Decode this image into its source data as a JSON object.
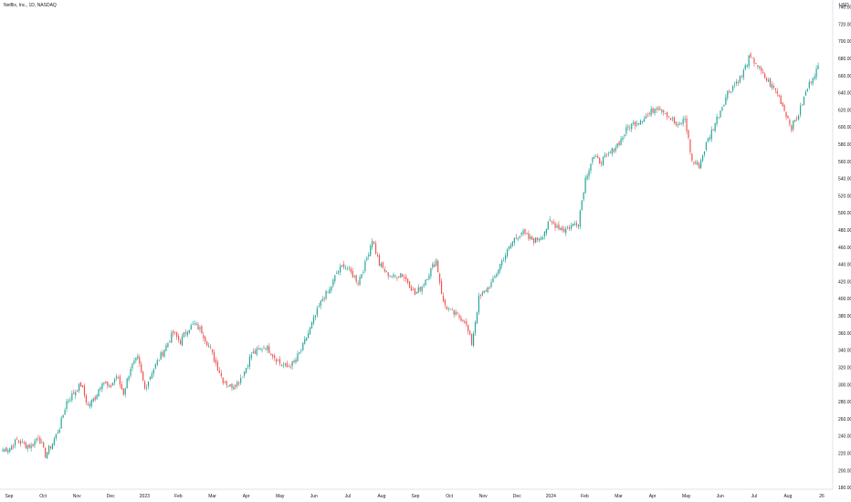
{
  "header": {
    "title": "Netflix, Inc., 1D, NASDAQ",
    "currency": "USD"
  },
  "colors": {
    "up": "#26a69a",
    "down": "#ef5350",
    "axis": "#e0e3eb",
    "text": "#131722",
    "background": "#ffffff"
  },
  "chart_data": {
    "type": "candlestick",
    "title": "Netflix, Inc., 1D, NASDAQ",
    "ylabel": "USD",
    "ylim": [
      178,
      748
    ],
    "y_ticks": [
      180,
      200,
      220,
      240,
      260,
      280,
      300,
      320,
      340,
      360,
      380,
      400,
      420,
      440,
      460,
      480,
      500,
      520,
      540,
      560,
      580,
      600,
      620,
      640,
      660,
      680,
      700,
      720,
      740
    ],
    "x_tick_labels": [
      "Sep",
      "Oct",
      "Nov",
      "Dec",
      "2023",
      "Feb",
      "Mar",
      "Apr",
      "May",
      "Jun",
      "Jul",
      "Aug",
      "Sep",
      "Oct",
      "Nov",
      "Dec",
      "2024",
      "Feb",
      "Mar",
      "Apr",
      "May",
      "Jun",
      "Jul",
      "Aug",
      "26"
    ],
    "months": [
      {
        "label": "Sep",
        "path": [
          224,
          226,
          235,
          230,
          228,
          240
        ]
      },
      {
        "label": "Oct",
        "path": [
          240,
          218,
          232,
          250,
          280,
          290
        ]
      },
      {
        "label": "Nov",
        "path": [
          290,
          300,
          275,
          285,
          305,
          295
        ]
      },
      {
        "label": "Dec",
        "path": [
          295,
          310,
          290,
          320,
          330,
          295
        ]
      },
      {
        "label": "2023",
        "path": [
          295,
          315,
          330,
          345,
          360,
          350
        ]
      },
      {
        "label": "Feb",
        "path": [
          350,
          365,
          370,
          362,
          345,
          325
        ]
      },
      {
        "label": "Mar",
        "path": [
          325,
          305,
          298,
          302,
          315,
          335
        ]
      },
      {
        "label": "Apr",
        "path": [
          335,
          340,
          345,
          335,
          325,
          320
        ]
      },
      {
        "label": "May",
        "path": [
          320,
          325,
          340,
          360,
          380,
          400
        ]
      },
      {
        "label": "Jun",
        "path": [
          400,
          410,
          430,
          440,
          430,
          420
        ]
      },
      {
        "label": "Jul",
        "path": [
          420,
          440,
          470,
          440,
          430,
          425
        ]
      },
      {
        "label": "Aug",
        "path": [
          425,
          430,
          420,
          405,
          415,
          430
        ]
      },
      {
        "label": "Sep",
        "path": [
          430,
          445,
          395,
          385,
          380,
          375
        ]
      },
      {
        "label": "Oct",
        "path": [
          375,
          348,
          400,
          410,
          420,
          440
        ]
      },
      {
        "label": "Nov",
        "path": [
          440,
          455,
          470,
          478,
          470,
          468
        ]
      },
      {
        "label": "Dec",
        "path": [
          468,
          475,
          490,
          485,
          480,
          485
        ]
      },
      {
        "label": "2024",
        "path": [
          485,
          490,
          540,
          565,
          560,
          565
        ]
      },
      {
        "label": "Feb",
        "path": [
          565,
          575,
          585,
          600,
          605,
          610
        ]
      },
      {
        "label": "Mar",
        "path": [
          610,
          615,
          625,
          620,
          610,
          600
        ]
      },
      {
        "label": "Apr",
        "path": [
          600,
          610,
          560,
          555,
          580,
          600
        ]
      },
      {
        "label": "May",
        "path": [
          600,
          620,
          640,
          650,
          660,
          680
        ]
      },
      {
        "label": "Jun",
        "path": [
          680,
          675,
          660,
          650,
          640,
          620
        ]
      },
      {
        "label": "Jul",
        "path": [
          620,
          600,
          615,
          640,
          660,
          672
        ]
      }
    ]
  }
}
